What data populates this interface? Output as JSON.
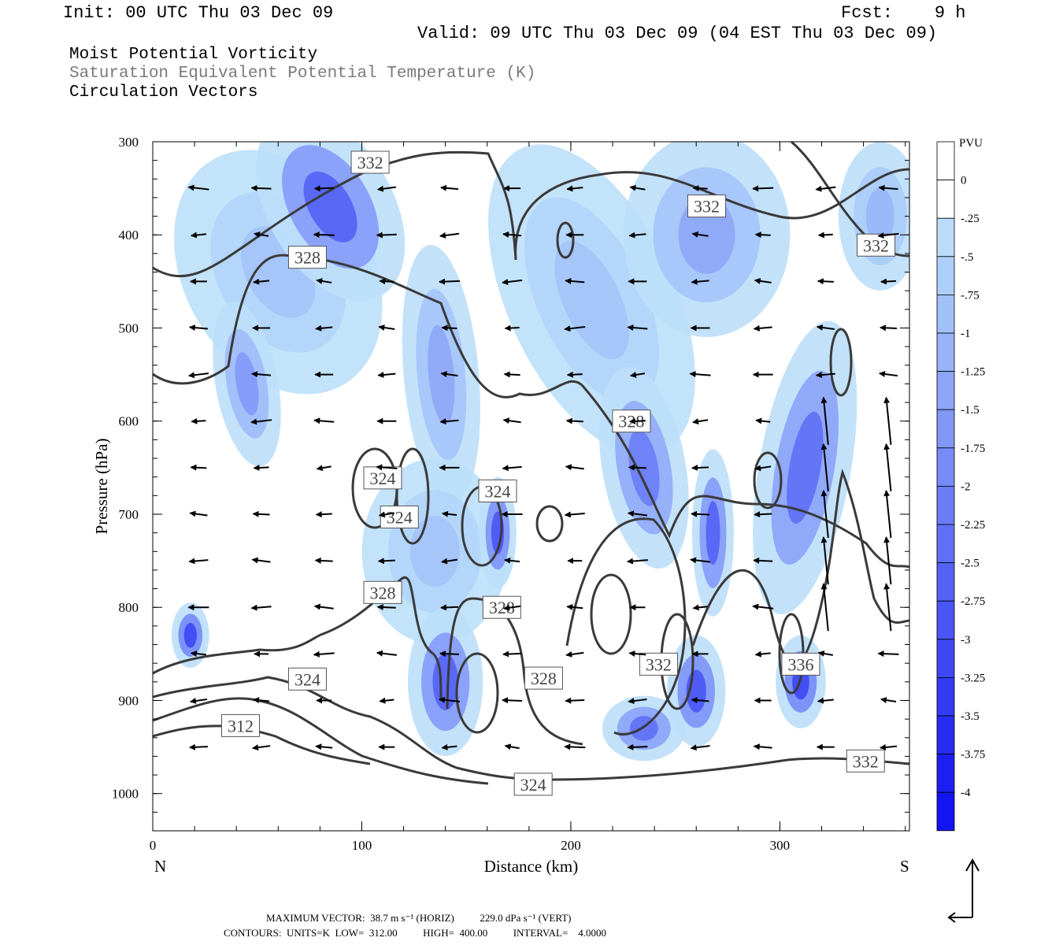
{
  "header": {
    "init": "Init: 00 UTC Thu 03 Dec 09",
    "fcst": "Fcst:    9 h",
    "valid": "Valid: 09 UTC Thu 03 Dec 09 (04 EST Thu 03 Dec 09)"
  },
  "titles": {
    "line1": "Moist Potential Vorticity",
    "line2": "Saturation Equivalent Potential Temperature (K)",
    "line3": "Circulation Vectors"
  },
  "footer": {
    "line1": "MAXIMUM VECTOR:  38.7 m s⁻¹ (HORIZ)          229.0 dPa s⁻¹ (VERT)",
    "line2": "CONTOURS:  UNITS=K  LOW=  312.00          HIGH=  400.00          INTERVAL=    4.0000"
  },
  "colors": {
    "contour": "#3a3a3a",
    "pv_light": "#c7ecfb",
    "pv_mid": "#8fa7f5",
    "pv_strong": "#1a1af2"
  },
  "chart_data": {
    "type": "heatmap",
    "xlabel": "Distance (km)",
    "ylabel": "Pressure (hPa)",
    "x_left_label": "N",
    "x_right_label": "S",
    "xlim": [
      0,
      362
    ],
    "ylim": [
      1040,
      300
    ],
    "x_ticks": [
      0,
      100,
      200,
      300
    ],
    "y_ticks": [
      300,
      400,
      500,
      600,
      700,
      800,
      900,
      1000
    ],
    "colorbar": {
      "unit": "PVU",
      "levels": [
        "0",
        "-.25",
        "-.5",
        "-.75",
        "-1",
        "-1.25",
        "-1.5",
        "-1.75",
        "-2",
        "-2.25",
        "-2.5",
        "-2.75",
        "-3",
        "-3.25",
        "-3.5",
        "-3.75",
        "-4"
      ]
    },
    "contour_labels": [
      {
        "text": "332",
        "x": 104,
        "p": 322
      },
      {
        "text": "332",
        "x": 265,
        "p": 369
      },
      {
        "text": "332",
        "x": 346,
        "p": 411
      },
      {
        "text": "328",
        "x": 74,
        "p": 424
      },
      {
        "text": "328",
        "x": 229,
        "p": 600
      },
      {
        "text": "324",
        "x": 110,
        "p": 661
      },
      {
        "text": "324",
        "x": 118,
        "p": 703
      },
      {
        "text": "324",
        "x": 165,
        "p": 675
      },
      {
        "text": "328",
        "x": 110,
        "p": 784
      },
      {
        "text": "328",
        "x": 167,
        "p": 800
      },
      {
        "text": "328",
        "x": 187,
        "p": 876
      },
      {
        "text": "332",
        "x": 242,
        "p": 861
      },
      {
        "text": "336",
        "x": 310,
        "p": 861
      },
      {
        "text": "324",
        "x": 74,
        "p": 877
      },
      {
        "text": "312",
        "x": 42,
        "p": 927
      },
      {
        "text": "332",
        "x": 341,
        "p": 965
      },
      {
        "text": "324",
        "x": 182,
        "p": 990
      }
    ],
    "pv_regions": [
      {
        "x": 60,
        "p": 440,
        "rx": 45,
        "ry": 140,
        "rot": -30,
        "value": -0.75
      },
      {
        "x": 85,
        "p": 370,
        "rx": 30,
        "ry": 110,
        "rot": -30,
        "value": -2.5
      },
      {
        "x": 45,
        "p": 560,
        "rx": 15,
        "ry": 90,
        "rot": -10,
        "value": -1.5
      },
      {
        "x": 210,
        "p": 470,
        "rx": 40,
        "ry": 180,
        "rot": -25,
        "value": -0.75
      },
      {
        "x": 265,
        "p": 400,
        "rx": 40,
        "ry": 110,
        "rot": 0,
        "value": -1.25
      },
      {
        "x": 348,
        "p": 380,
        "rx": 20,
        "ry": 80,
        "rot": 0,
        "value": -1.0
      },
      {
        "x": 138,
        "p": 550,
        "rx": 18,
        "ry": 140,
        "rot": -5,
        "value": -1.25
      },
      {
        "x": 135,
        "p": 740,
        "rx": 35,
        "ry": 100,
        "rot": 0,
        "value": -0.75
      },
      {
        "x": 165,
        "p": 720,
        "rx": 9,
        "ry": 60,
        "rot": 0,
        "value": -2.75
      },
      {
        "x": 235,
        "p": 650,
        "rx": 20,
        "ry": 110,
        "rot": -10,
        "value": -2.0
      },
      {
        "x": 268,
        "p": 720,
        "rx": 10,
        "ry": 90,
        "rot": 0,
        "value": -2.5
      },
      {
        "x": 312,
        "p": 650,
        "rx": 22,
        "ry": 160,
        "rot": 10,
        "value": -2.25
      },
      {
        "x": 140,
        "p": 880,
        "rx": 18,
        "ry": 80,
        "rot": 0,
        "value": -2.5
      },
      {
        "x": 260,
        "p": 890,
        "rx": 14,
        "ry": 60,
        "rot": 0,
        "value": -2.75
      },
      {
        "x": 310,
        "p": 880,
        "rx": 12,
        "ry": 50,
        "rot": 0,
        "value": -3.0
      },
      {
        "x": 235,
        "p": 930,
        "rx": 20,
        "ry": 35,
        "rot": 0,
        "value": -2.25
      },
      {
        "x": 18,
        "p": 830,
        "rx": 9,
        "ry": 35,
        "rot": 0,
        "value": -3.0
      }
    ]
  }
}
